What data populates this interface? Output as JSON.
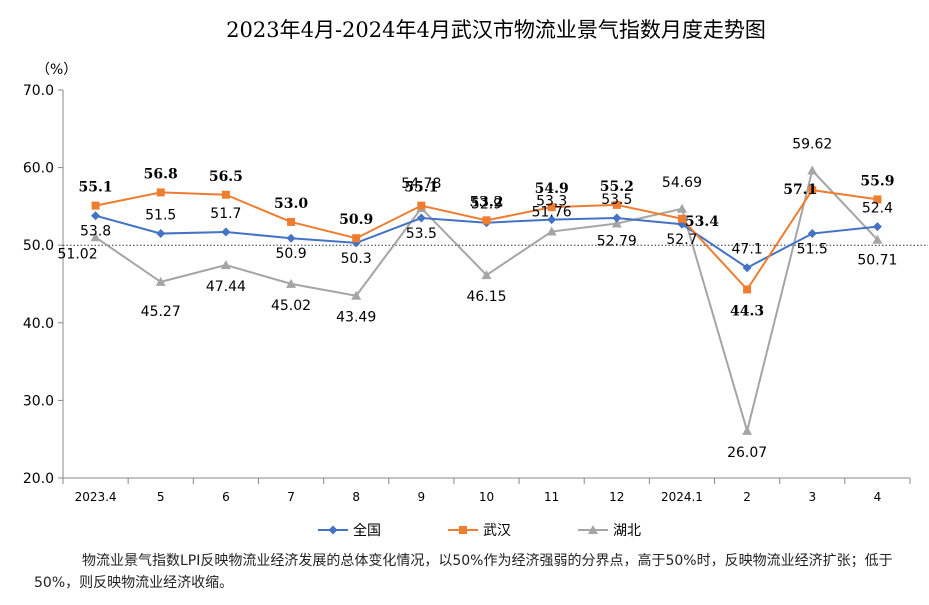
{
  "chart_data": {
    "type": "line",
    "title": "2023年4月-2024年4月武汉市物流业景气指数月度走势图",
    "unit_label": "（%）",
    "categories": [
      "2023.4",
      "5",
      "6",
      "7",
      "8",
      "9",
      "10",
      "11",
      "12",
      "2024.1",
      "2",
      "3",
      "4"
    ],
    "ylim": [
      20,
      70
    ],
    "yticks": [
      "20.0",
      "30.0",
      "40.0",
      "50.0",
      "60.0",
      "70.0"
    ],
    "reference_line": 50,
    "legend_position": "bottom",
    "series": [
      {
        "name": "全国",
        "color": "#4472C4",
        "marker": "diamond",
        "values": [
          53.8,
          51.5,
          51.7,
          50.9,
          50.3,
          53.5,
          52.9,
          53.3,
          53.5,
          52.7,
          47.1,
          51.5,
          52.4
        ],
        "labels": [
          "53.8",
          "51.5",
          "51.7",
          "50.9",
          "50.3",
          "53.5",
          "52.9",
          "53.3",
          "53.5",
          "52.7",
          "47.1",
          "51.5",
          "52.4"
        ]
      },
      {
        "name": "武汉",
        "color": "#ED7D31",
        "marker": "square",
        "values": [
          55.1,
          56.8,
          56.5,
          53.0,
          50.9,
          55.1,
          53.2,
          54.9,
          55.2,
          53.4,
          44.3,
          57.1,
          55.9
        ],
        "labels": [
          "55.1",
          "56.8",
          "56.5",
          "53.0",
          "50.9",
          "55.1",
          "53.2",
          "54.9",
          "55.2",
          "53.4",
          "44.3",
          "57.1",
          "55.9"
        ]
      },
      {
        "name": "湖北",
        "color": "#A5A5A5",
        "marker": "triangle",
        "values": [
          51.02,
          45.27,
          47.44,
          45.02,
          43.49,
          54.78,
          46.15,
          51.76,
          52.79,
          54.69,
          26.07,
          59.62,
          50.71
        ],
        "labels": [
          "51.02",
          "45.27",
          "47.44",
          "45.02",
          "43.49",
          "54.78",
          "46.15",
          "51.76",
          "52.79",
          "54.69",
          "26.07",
          "59.62",
          "50.71"
        ]
      }
    ]
  },
  "note": "物流业景气指数LPI反映物流业经济发展的总体变化情况，以50%作为经济强弱的分界点，高于50%时，反映物流业经济扩张；低于50%，则反映物流业经济收缩。"
}
